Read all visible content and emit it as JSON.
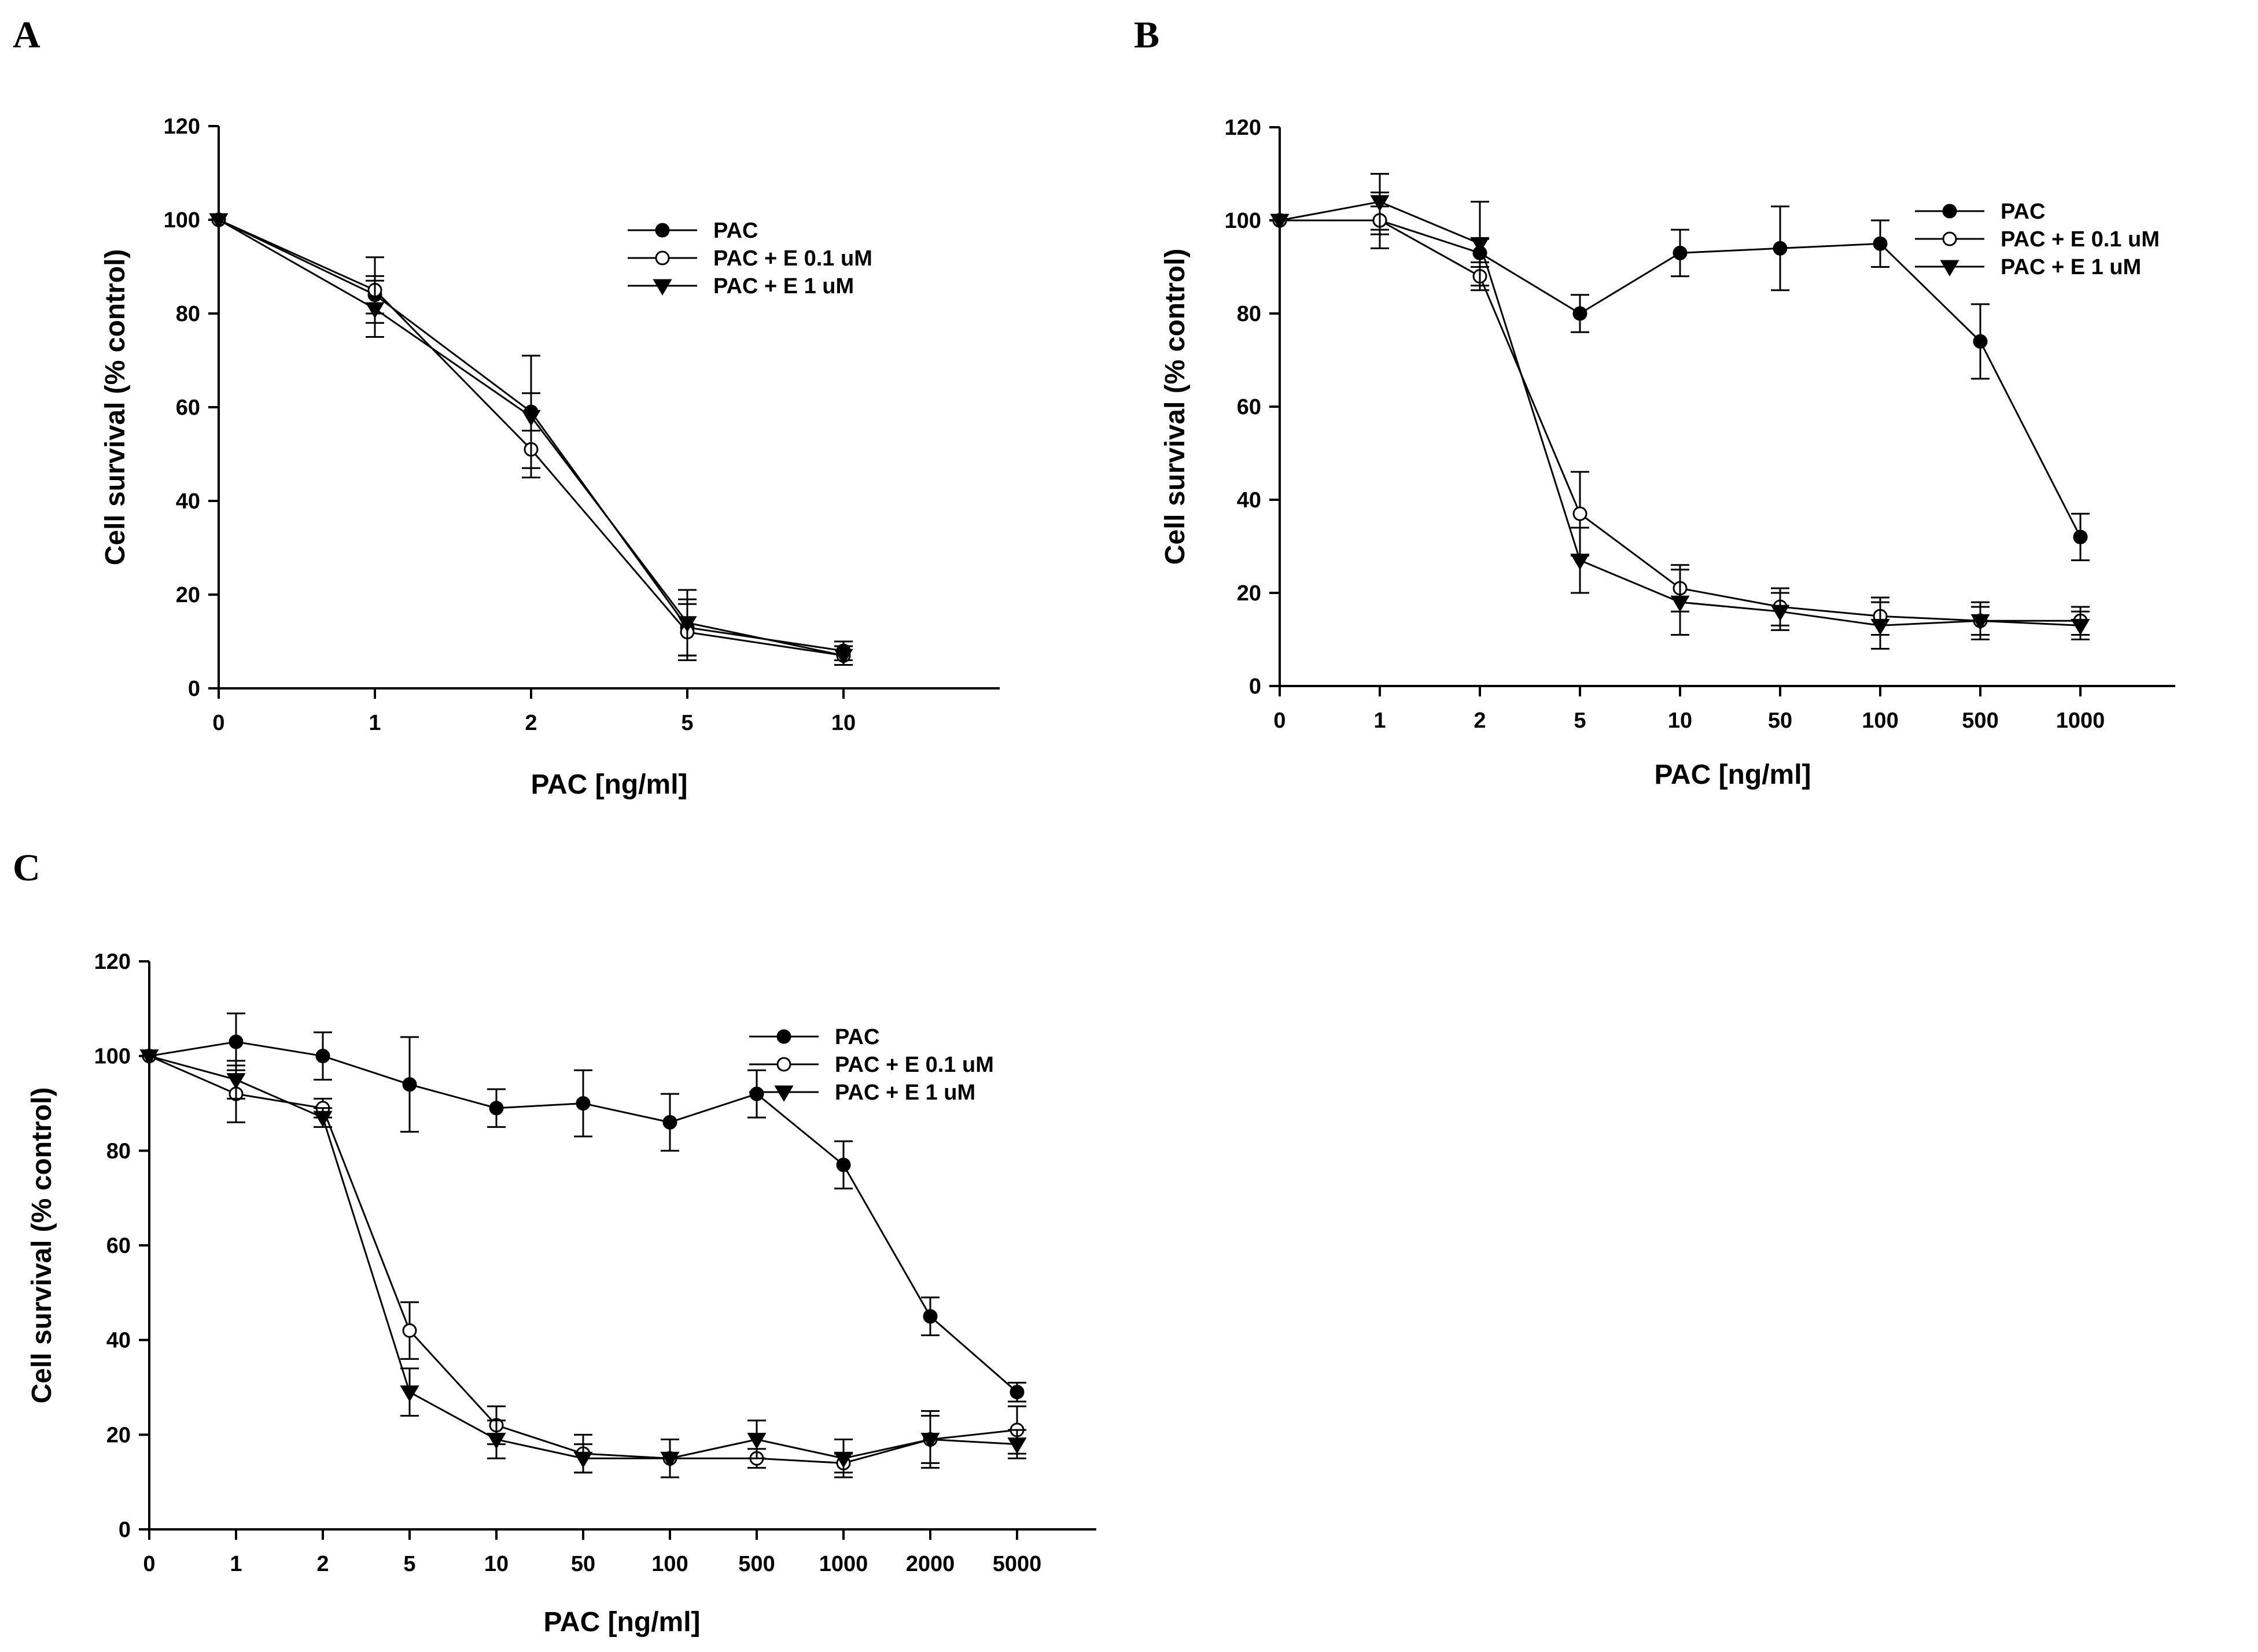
{
  "chart_data": [
    {
      "panel": "A",
      "type": "line",
      "title": "",
      "xlabel": "PAC [ng/ml]",
      "ylabel": "Cell survival (% control)",
      "categories": [
        "0",
        "1",
        "2",
        "5",
        "10"
      ],
      "ylim": [
        0,
        120
      ],
      "yticks": [
        0,
        20,
        40,
        60,
        80,
        100,
        120
      ],
      "legend_position": "top-right",
      "series": [
        {
          "name": "PAC",
          "marker": "filled-circle",
          "values": [
            100,
            84,
            59,
            13,
            8
          ],
          "errors": [
            0,
            4,
            4,
            6,
            2
          ]
        },
        {
          "name": "PAC + E 0.1 uM",
          "marker": "open-circle",
          "values": [
            100,
            85,
            51,
            12,
            7
          ],
          "errors": [
            0,
            7,
            4,
            6,
            2
          ]
        },
        {
          "name": "PAC + E 1 uM",
          "marker": "filled-triangle-down",
          "values": [
            100,
            81,
            58,
            14,
            7
          ],
          "errors": [
            0,
            6,
            13,
            7,
            2
          ]
        }
      ]
    },
    {
      "panel": "B",
      "type": "line",
      "title": "",
      "xlabel": "PAC [ng/ml]",
      "ylabel": "Cell survival (% control)",
      "categories": [
        "0",
        "1",
        "2",
        "5",
        "10",
        "50",
        "100",
        "500",
        "1000"
      ],
      "ylim": [
        0,
        120
      ],
      "yticks": [
        0,
        20,
        40,
        60,
        80,
        100,
        120
      ],
      "legend_position": "top-right",
      "series": [
        {
          "name": "PAC",
          "marker": "filled-circle",
          "values": [
            100,
            100,
            93,
            80,
            93,
            94,
            95,
            74,
            32
          ],
          "errors": [
            0,
            3,
            3,
            4,
            5,
            9,
            5,
            8,
            5
          ]
        },
        {
          "name": "PAC + E 0.1 uM",
          "marker": "open-circle",
          "values": [
            100,
            100,
            88,
            37,
            21,
            17,
            15,
            14,
            14
          ],
          "errors": [
            0,
            6,
            3,
            9,
            5,
            4,
            4,
            3,
            3
          ]
        },
        {
          "name": "PAC + E 1 uM",
          "marker": "filled-triangle-down",
          "values": [
            100,
            104,
            95,
            27,
            18,
            16,
            13,
            14,
            13
          ],
          "errors": [
            0,
            6,
            9,
            7,
            7,
            4,
            5,
            4,
            3
          ]
        }
      ]
    },
    {
      "panel": "C",
      "type": "line",
      "title": "",
      "xlabel": "PAC [ng/ml]",
      "ylabel": "Cell survival (% control)",
      "categories": [
        "0",
        "1",
        "2",
        "5",
        "10",
        "50",
        "100",
        "500",
        "1000",
        "2000",
        "5000"
      ],
      "ylim": [
        0,
        120
      ],
      "yticks": [
        0,
        20,
        40,
        60,
        80,
        100,
        120
      ],
      "legend_position": "top-right",
      "series": [
        {
          "name": "PAC",
          "marker": "filled-circle",
          "values": [
            100,
            103,
            100,
            94,
            89,
            90,
            86,
            92,
            77,
            45,
            29
          ],
          "errors": [
            0,
            6,
            5,
            10,
            4,
            7,
            6,
            5,
            5,
            4,
            2
          ]
        },
        {
          "name": "PAC + E 0.1 uM",
          "marker": "open-circle",
          "values": [
            100,
            92,
            89,
            42,
            22,
            16,
            15,
            15,
            14,
            19,
            21
          ],
          "errors": [
            0,
            6,
            2,
            6,
            4,
            4,
            4,
            2,
            2,
            5,
            5
          ]
        },
        {
          "name": "PAC + E 1 uM",
          "marker": "filled-triangle-down",
          "values": [
            100,
            95,
            87,
            29,
            19,
            15,
            15,
            19,
            15,
            19,
            18
          ],
          "errors": [
            0,
            4,
            2,
            5,
            4,
            3,
            4,
            4,
            4,
            6,
            3
          ]
        }
      ]
    }
  ]
}
